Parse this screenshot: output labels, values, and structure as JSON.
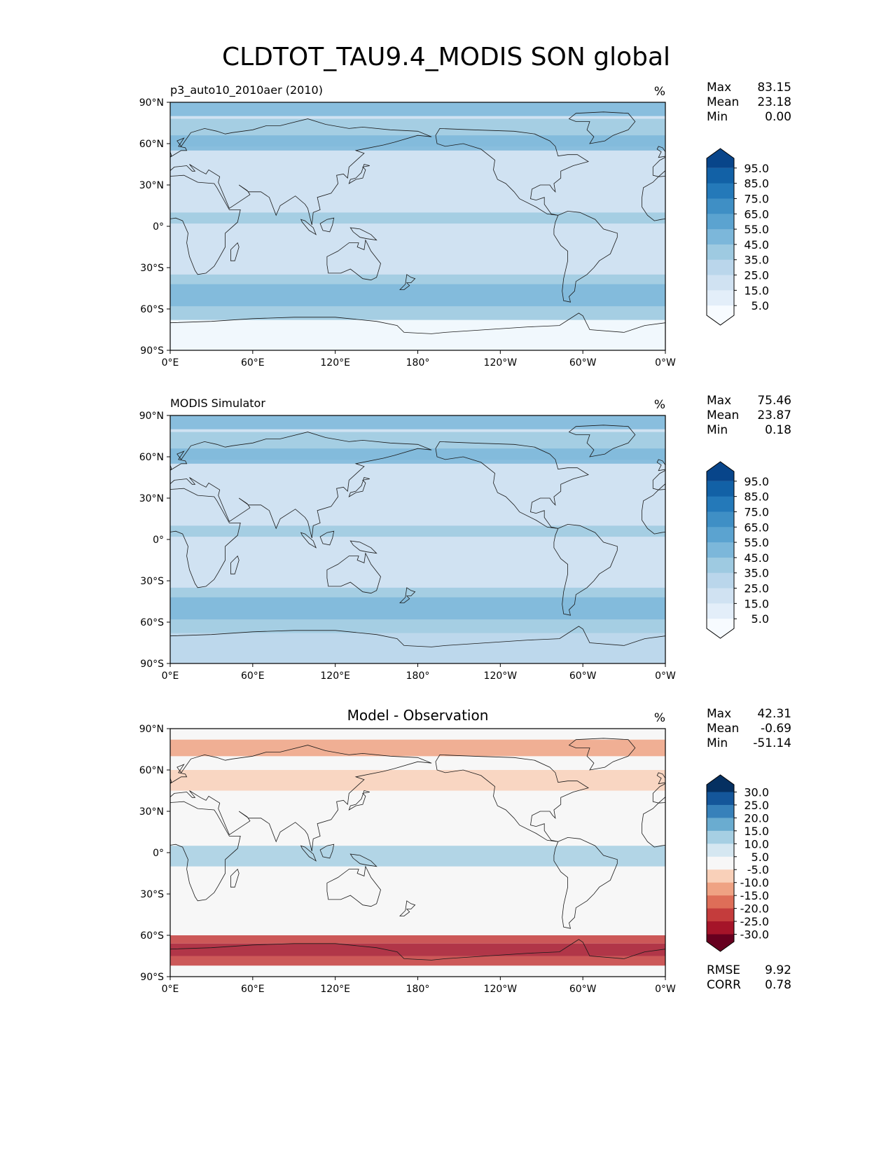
{
  "title": "CLDTOT_TAU9.4_MODIS SON global",
  "chart_data": [
    {
      "type": "heatmap",
      "name": "test",
      "title": "p3_auto10_2010aer (2010)",
      "units": "%",
      "stats": [
        {
          "label": "Max",
          "value": "83.15"
        },
        {
          "label": "Mean",
          "value": "23.18"
        },
        {
          "label": "Min",
          "value": "0.00"
        }
      ],
      "colorbar": {
        "colormap": "Blues",
        "levels": [
          0,
          5,
          10,
          15,
          20,
          25,
          30,
          35,
          40,
          45,
          50,
          55,
          60,
          65,
          70,
          75,
          80,
          85,
          90,
          95,
          100
        ],
        "colors": [
          "#f7fbff",
          "#e3eef9",
          "#d0e2f2",
          "#bad6eb",
          "#9ecae1",
          "#7cb7da",
          "#5ba3d0",
          "#3f8fc5",
          "#2479b9",
          "#1261a6",
          "#08458a"
        ],
        "tick_labels": [
          "95.0",
          "85.0",
          "75.0",
          "65.0",
          "55.0",
          "45.0",
          "35.0",
          "25.0",
          "15.0",
          "5.0"
        ],
        "extend": "both"
      },
      "xticks": [
        "0°E",
        "60°E",
        "120°E",
        "180°",
        "120°W",
        "60°W",
        "0°W"
      ],
      "yticks": [
        "90°N",
        "60°N",
        "30°N",
        "0°",
        "30°S",
        "60°S",
        "90°S"
      ],
      "xlim": [
        0,
        360
      ],
      "ylim": [
        -90,
        90
      ]
    },
    {
      "type": "heatmap",
      "name": "reference",
      "title": "MODIS Simulator",
      "units": "%",
      "stats": [
        {
          "label": "Max",
          "value": "75.46"
        },
        {
          "label": "Mean",
          "value": "23.87"
        },
        {
          "label": "Min",
          "value": "0.18"
        }
      ],
      "colorbar": {
        "colormap": "Blues",
        "levels": [
          0,
          5,
          10,
          15,
          20,
          25,
          30,
          35,
          40,
          45,
          50,
          55,
          60,
          65,
          70,
          75,
          80,
          85,
          90,
          95,
          100
        ],
        "colors": [
          "#f7fbff",
          "#e3eef9",
          "#d0e2f2",
          "#bad6eb",
          "#9ecae1",
          "#7cb7da",
          "#5ba3d0",
          "#3f8fc5",
          "#2479b9",
          "#1261a6",
          "#08458a"
        ],
        "tick_labels": [
          "95.0",
          "85.0",
          "75.0",
          "65.0",
          "55.0",
          "45.0",
          "35.0",
          "25.0",
          "15.0",
          "5.0"
        ],
        "extend": "both"
      },
      "xticks": [
        "0°E",
        "60°E",
        "120°E",
        "180°",
        "120°W",
        "60°W",
        "0°W"
      ],
      "yticks": [
        "90°N",
        "60°N",
        "30°N",
        "0°",
        "30°S",
        "60°S",
        "90°S"
      ],
      "xlim": [
        0,
        360
      ],
      "ylim": [
        -90,
        90
      ]
    },
    {
      "type": "heatmap",
      "name": "difference",
      "title": "Model - Observation",
      "units": "%",
      "stats": [
        {
          "label": "Max",
          "value": "42.31"
        },
        {
          "label": "Mean",
          "value": "-0.69"
        },
        {
          "label": "Min",
          "value": "-51.14"
        }
      ],
      "colorbar": {
        "colormap": "RdBu",
        "levels": [
          -30,
          -25,
          -20,
          -15,
          -10,
          -5,
          5,
          10,
          15,
          20,
          25,
          30
        ],
        "colors": [
          "#67001f",
          "#a51429",
          "#c43c3c",
          "#de6e58",
          "#efa283",
          "#f9d0b9",
          "#f7f7f7",
          "#d5e7f1",
          "#a6cfe3",
          "#6aacd0",
          "#3781ba",
          "#14569a",
          "#053061"
        ],
        "tick_labels": [
          "30.0",
          "25.0",
          "20.0",
          "15.0",
          "10.0",
          "5.0",
          "-5.0",
          "-10.0",
          "-15.0",
          "-20.0",
          "-25.0",
          "-30.0"
        ],
        "extend": "both"
      },
      "metrics": [
        {
          "label": "RMSE",
          "value": "9.92"
        },
        {
          "label": "CORR",
          "value": "0.78"
        }
      ],
      "xticks": [
        "0°E",
        "60°E",
        "120°E",
        "180°",
        "120°W",
        "60°W",
        "0°W"
      ],
      "yticks": [
        "90°N",
        "60°N",
        "30°N",
        "0°",
        "30°S",
        "60°S",
        "90°S"
      ],
      "xlim": [
        0,
        360
      ],
      "ylim": [
        -90,
        90
      ]
    }
  ]
}
